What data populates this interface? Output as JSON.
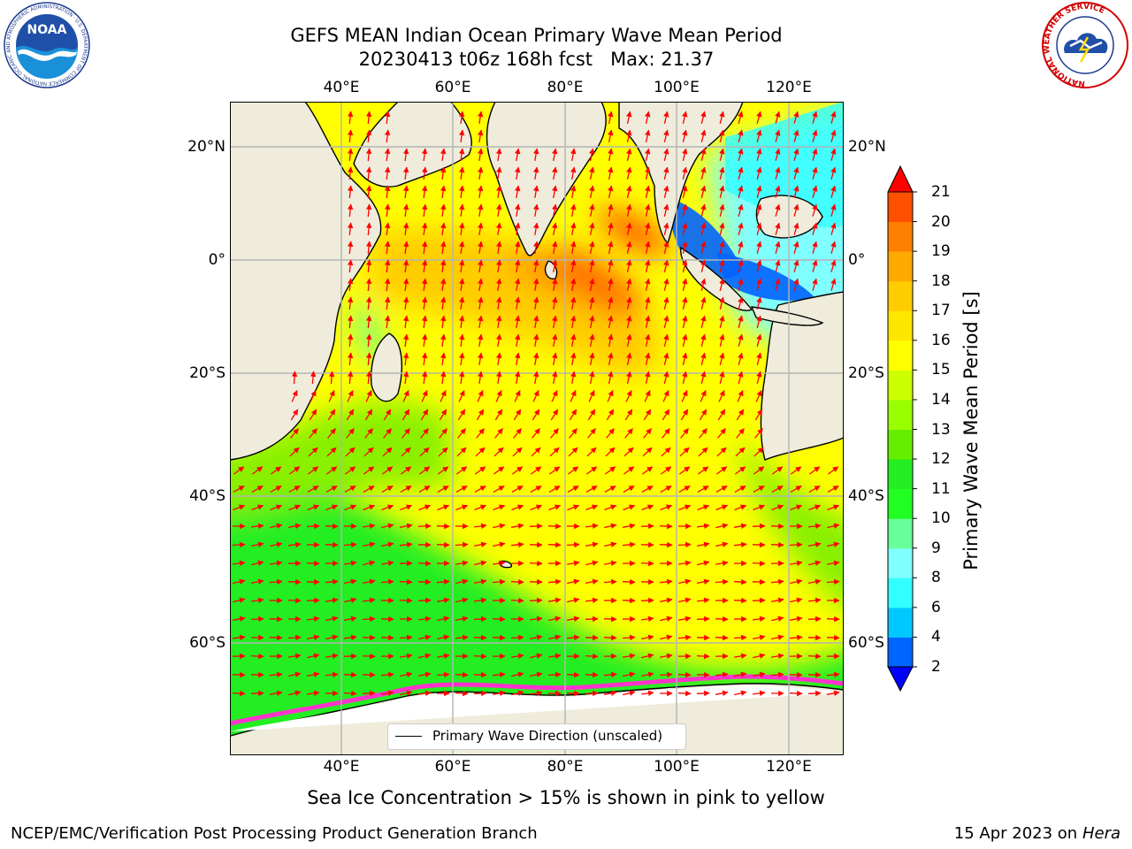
{
  "title": {
    "line1": "GEFS MEAN Indian Ocean Primary Wave Mean Period",
    "line2": "20230413 t06z 168h fcst   Max: 21.37"
  },
  "map": {
    "lon_ticks": [
      "40°E",
      "60°E",
      "80°E",
      "100°E",
      "120°E"
    ],
    "lat_ticks": [
      "20°N",
      "0°",
      "20°S",
      "40°S",
      "60°S"
    ],
    "legend": "Primary Wave Direction (unscaled)",
    "colors": {
      "land": "#efecdb",
      "ice": "#ffffff",
      "vector": "#ff0000",
      "grid": "#b4b4b4"
    }
  },
  "colorbar": {
    "label": "Primary Wave Mean Period [s]",
    "levels": [
      2,
      4,
      6,
      8,
      9,
      10,
      11,
      12,
      13,
      14,
      15,
      16,
      17,
      18,
      19,
      20,
      21
    ],
    "colors": [
      "#0064ff",
      "#00c8ff",
      "#32ffff",
      "#80ffff",
      "#66ff99",
      "#22ff22",
      "#22ee22",
      "#66ee00",
      "#99ff00",
      "#ccff00",
      "#ffff00",
      "#ffe600",
      "#ffcc00",
      "#ffaa00",
      "#ff8000",
      "#ff5000",
      "#ff2000"
    ],
    "under_color": "#0000ff",
    "over_color": "#ff0000"
  },
  "caption": "Sea Ice Concentration > 15% is shown in pink to yellow",
  "footer": {
    "left": "NCEP/EMC/Verification Post Processing Product Generation Branch",
    "date": "15 Apr 2023 on ",
    "host": "Hera"
  },
  "logos": {
    "noaa": "NOAA",
    "noaa_ring": "NATIONAL OCEANIC AND ATMOSPHERIC ADMINISTRATION · U.S. DEPARTMENT OF COMMERCE",
    "nws_ring": "NATIONAL WEATHER SERVICE"
  }
}
